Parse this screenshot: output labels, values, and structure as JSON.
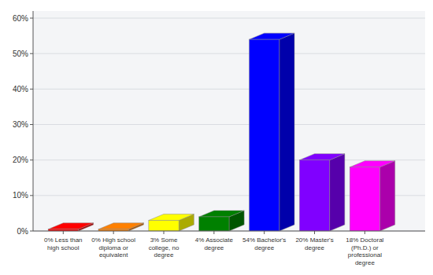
{
  "chart_data": {
    "type": "bar",
    "categories": [
      "0%  Less than\nhigh school",
      "0%  High school\ndiploma or\nequivalent",
      "3%  Some\ncollege, no\ndegree",
      "4%  Associate\ndegree",
      "54%  Bachelor's\ndegree",
      "20%  Master's\ndegree",
      "18%  Doctoral\n(Ph.D.) or\nprofessional\ndegree"
    ],
    "values": [
      0.5,
      0.5,
      3,
      4,
      54,
      20,
      18
    ],
    "colors": [
      "#ff0000",
      "#ff8000",
      "#ffff00",
      "#008000",
      "#0000ff",
      "#8000ff",
      "#ff00ff"
    ],
    "ylim": [
      0,
      62
    ],
    "yticks": [
      {
        "value": 0,
        "label": "0%"
      },
      {
        "value": 10,
        "label": "10%"
      },
      {
        "value": 20,
        "label": "20%"
      },
      {
        "value": 30,
        "label": "30%"
      },
      {
        "value": 40,
        "label": "40%"
      },
      {
        "value": 50,
        "label": "50%"
      },
      {
        "value": 60,
        "label": "60%"
      }
    ],
    "grid": true
  }
}
